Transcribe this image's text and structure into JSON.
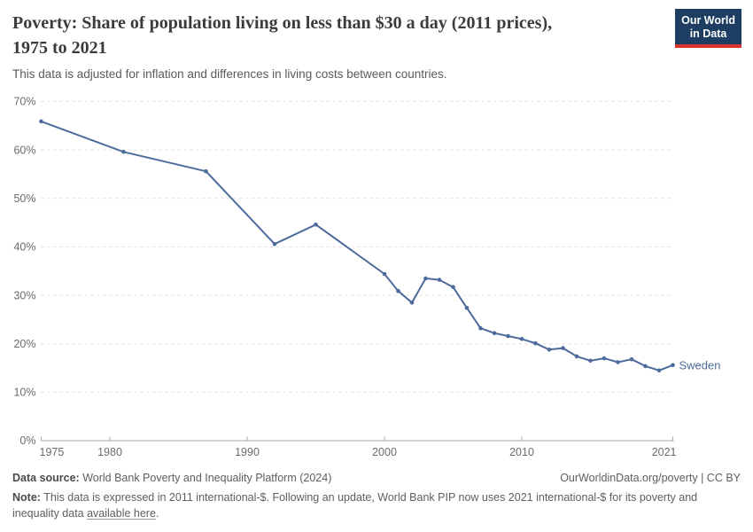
{
  "header": {
    "title_line1": "Poverty: Share of population living on less than $30 a day (2011 prices),",
    "title_line2": "1975 to 2021",
    "subtitle": "This data is adjusted for inflation and differences in living costs between countries.",
    "logo_line1": "Our World",
    "logo_line2": "in Data"
  },
  "colors": {
    "line_blue": "#4d6b9c",
    "brand_navy": "#1d3d63",
    "brand_red": "#d8352e",
    "grid_gray": "#dcdcdc",
    "axis_gray": "#a6a6a6",
    "axis_text_gray": "#6b6b6b"
  },
  "chart_data": {
    "type": "line",
    "title": "Poverty: Share of population living on less than $30 a day (2011 prices), 1975 to 2021",
    "subtitle": "This data is adjusted for inflation and differences in living costs between countries.",
    "xlabel": "",
    "ylabel": "",
    "x_range": [
      1975,
      2021
    ],
    "y_range": [
      0,
      70
    ],
    "y_format": "percent",
    "grid": "horizontal dashed",
    "legend_position": "end-of-line label",
    "x_ticks": [
      1975,
      1980,
      1990,
      2000,
      2010,
      2021
    ],
    "y_ticks": [
      0,
      10,
      20,
      30,
      40,
      50,
      60,
      70
    ],
    "end_label": "Sweden",
    "series": [
      {
        "name": "Sweden",
        "color": "#4d6b9c",
        "points": [
          [
            1975,
            65.9
          ],
          [
            1981,
            59.6
          ],
          [
            1987,
            55.6
          ],
          [
            1992,
            40.6
          ],
          [
            1995,
            44.6
          ],
          [
            2000,
            34.4
          ],
          [
            2001,
            30.9
          ],
          [
            2002,
            28.5
          ],
          [
            2003,
            33.5
          ],
          [
            2004,
            33.2
          ],
          [
            2005,
            31.7
          ],
          [
            2006,
            27.4
          ],
          [
            2007,
            23.2
          ],
          [
            2008,
            22.2
          ],
          [
            2009,
            21.6
          ],
          [
            2010,
            21.0
          ],
          [
            2011,
            20.1
          ],
          [
            2012,
            18.8
          ],
          [
            2013,
            19.1
          ],
          [
            2014,
            17.4
          ],
          [
            2015,
            16.5
          ],
          [
            2016,
            17.0
          ],
          [
            2017,
            16.2
          ],
          [
            2018,
            16.8
          ],
          [
            2019,
            15.4
          ],
          [
            2020,
            14.5
          ],
          [
            2021,
            15.6
          ]
        ]
      }
    ]
  },
  "footer": {
    "datasource_label": "Data source:",
    "datasource_text": " World Bank Poverty and Inequality Platform (2024)",
    "rights": "OurWorldinData.org/poverty | CC BY",
    "note_label": "Note:",
    "note_line1": " This data is expressed in 2011 international-$. Following an update, World Bank PIP now uses 2021 international-$ for its poverty and",
    "note_line2_prefix": "inequality data ",
    "note_link": "available here",
    "note_suffix": "."
  }
}
